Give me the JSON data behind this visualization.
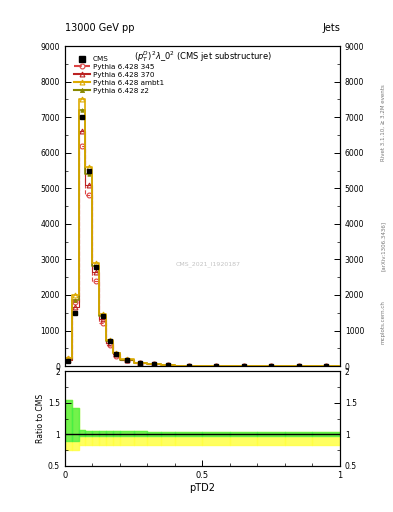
{
  "title_top": "13000 GeV pp",
  "title_right": "Jets",
  "plot_title": "$(p_T^D)^2\\lambda\\_0^2$ (CMS jet substructure)",
  "watermark": "CMS_2021_I1920187",
  "rivet_text": "Rivet 3.1.10, ≥ 3.2M events",
  "arxiv_text": "mcplots.cern.ch [arXiv:1306.3436]",
  "ylabel_ratio": "Ratio to CMS",
  "xlabel": "pTD2",
  "xlim": [
    0.0,
    1.0
  ],
  "ylim_main": [
    0,
    9000
  ],
  "ylim_ratio": [
    0.5,
    2.0
  ],
  "bin_edges": [
    0.0,
    0.025,
    0.05,
    0.075,
    0.1,
    0.125,
    0.15,
    0.175,
    0.2,
    0.25,
    0.3,
    0.35,
    0.4,
    0.5,
    0.6,
    0.7,
    0.8,
    0.9,
    1.0
  ],
  "cms_values": [
    150,
    1500,
    7000,
    5500,
    2800,
    1400,
    700,
    350,
    180,
    90,
    50,
    30,
    15,
    8,
    4,
    2,
    1,
    0.5
  ],
  "p345_values": [
    200,
    1800,
    6200,
    4800,
    2400,
    1200,
    580,
    280,
    160,
    80,
    45,
    25,
    14,
    6,
    3,
    1.5,
    0.8,
    0.4
  ],
  "p370_values": [
    170,
    1650,
    6600,
    5100,
    2650,
    1330,
    660,
    330,
    175,
    85,
    48,
    28,
    15,
    7,
    3.5,
    2,
    1,
    0.5
  ],
  "pambt1_values": [
    220,
    2000,
    7500,
    5600,
    2900,
    1460,
    730,
    365,
    190,
    95,
    53,
    32,
    16,
    8.5,
    4.2,
    2.2,
    1.1,
    0.6
  ],
  "pz2_values": [
    200,
    1850,
    7200,
    5400,
    2820,
    1420,
    710,
    355,
    185,
    92,
    51,
    30,
    15.5,
    8,
    4,
    2.1,
    1.0,
    0.55
  ],
  "ratio_345_lo": [
    0.75,
    0.75,
    0.83,
    0.83,
    0.83,
    0.83,
    0.83,
    0.83,
    0.83,
    0.83,
    0.83,
    0.83,
    0.83,
    0.83,
    0.83,
    0.83,
    0.83,
    0.83
  ],
  "ratio_345_hi": [
    1.4,
    1.35,
    0.94,
    0.94,
    0.9,
    0.9,
    0.9,
    0.9,
    0.92,
    0.92,
    0.95,
    0.95,
    0.95,
    0.92,
    0.9,
    0.88,
    0.88,
    0.88
  ],
  "ratio_z2_lo": [
    0.9,
    0.9,
    0.98,
    0.98,
    0.98,
    0.98,
    0.98,
    0.98,
    0.98,
    0.98,
    0.98,
    0.98,
    0.98,
    0.98,
    0.98,
    0.98,
    0.98,
    0.98
  ],
  "ratio_z2_hi": [
    1.55,
    1.42,
    1.07,
    1.05,
    1.05,
    1.05,
    1.05,
    1.06,
    1.06,
    1.06,
    1.04,
    1.04,
    1.04,
    1.03,
    1.03,
    1.03,
    1.03,
    1.03
  ],
  "cms_color": "black",
  "p345_color": "#dd4444",
  "p370_color": "#bb2222",
  "pambt1_color": "#ddaa00",
  "pz2_color": "#888800",
  "band_yellow": "#ffff44",
  "band_green": "#44ee44"
}
